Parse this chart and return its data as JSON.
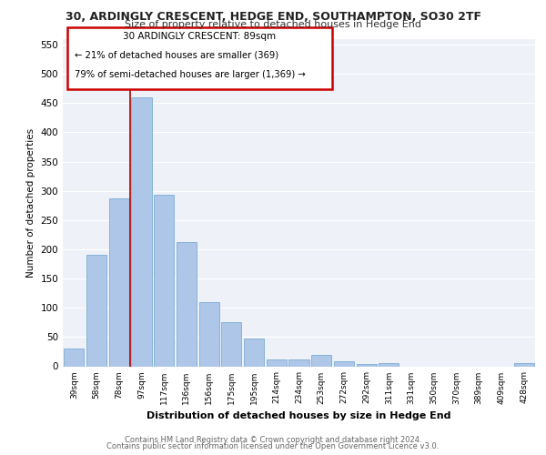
{
  "title_line1": "30, ARDINGLY CRESCENT, HEDGE END, SOUTHAMPTON, SO30 2TF",
  "title_line2": "Size of property relative to detached houses in Hedge End",
  "xlabel": "Distribution of detached houses by size in Hedge End",
  "ylabel": "Number of detached properties",
  "categories": [
    "39sqm",
    "58sqm",
    "78sqm",
    "97sqm",
    "117sqm",
    "136sqm",
    "156sqm",
    "175sqm",
    "195sqm",
    "214sqm",
    "234sqm",
    "253sqm",
    "272sqm",
    "292sqm",
    "311sqm",
    "331sqm",
    "350sqm",
    "370sqm",
    "389sqm",
    "409sqm",
    "428sqm"
  ],
  "values": [
    30,
    190,
    287,
    460,
    293,
    213,
    110,
    75,
    47,
    12,
    11,
    20,
    8,
    4,
    5,
    0,
    0,
    0,
    0,
    0,
    5
  ],
  "bar_color": "#aec6e8",
  "bar_edge_color": "#7aadd4",
  "highlight_line_color": "#aa0000",
  "ylim": [
    0,
    560
  ],
  "yticks": [
    0,
    50,
    100,
    150,
    200,
    250,
    300,
    350,
    400,
    450,
    500,
    550
  ],
  "annotation_line1": "30 ARDINGLY CRESCENT: 89sqm",
  "annotation_line2": "← 21% of detached houses are smaller (369)",
  "annotation_line3": "79% of semi-detached houses are larger (1,369) →",
  "bg_color": "#eef2f8",
  "footer_line1": "Contains HM Land Registry data © Crown copyright and database right 2024.",
  "footer_line2": "Contains public sector information licensed under the Open Government Licence v3.0."
}
